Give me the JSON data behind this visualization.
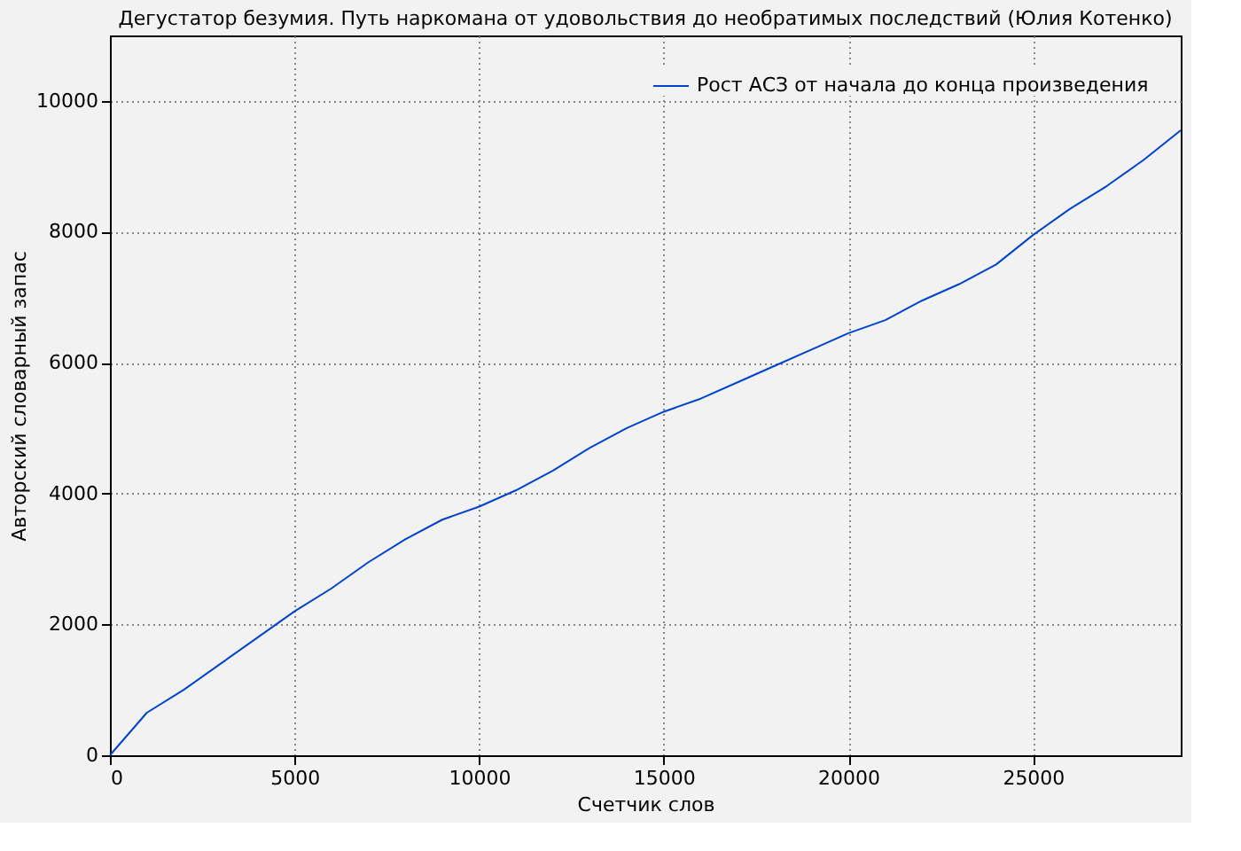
{
  "chart_data": {
    "type": "line",
    "title": "Дегустатор безумия. Путь наркомана от удовольствия до необратимых последствий (Юлия Котенко)",
    "xlabel": "Счетчик слов",
    "ylabel": "Авторский словарный запас",
    "x": [
      0,
      1000,
      2000,
      3000,
      4000,
      5000,
      6000,
      7000,
      8000,
      9000,
      10000,
      11000,
      12000,
      13000,
      14000,
      15000,
      16000,
      17000,
      18000,
      19000,
      20000,
      21000,
      22000,
      23000,
      24000,
      25000,
      26000,
      27000,
      28000,
      29000
    ],
    "series": [
      {
        "name": "Рост АСЗ от начала до конца произведения",
        "color": "#0044cc",
        "values": [
          0,
          650,
          1000,
          1400,
          1800,
          2200,
          2550,
          2950,
          3300,
          3600,
          3800,
          4050,
          4350,
          4700,
          5000,
          5250,
          5450,
          5700,
          5950,
          6200,
          6450,
          6650,
          6950,
          7200,
          7500,
          7950,
          8350,
          8700,
          9100,
          9550
        ]
      }
    ],
    "xlim": [
      0,
      29000
    ],
    "ylim": [
      0,
      11000
    ],
    "xticks": [
      0,
      5000,
      10000,
      15000,
      20000,
      25000
    ],
    "yticks": [
      0,
      2000,
      4000,
      6000,
      8000,
      10000
    ],
    "grid": true,
    "legend": "top right",
    "line_style": "solid",
    "marker": "none"
  }
}
